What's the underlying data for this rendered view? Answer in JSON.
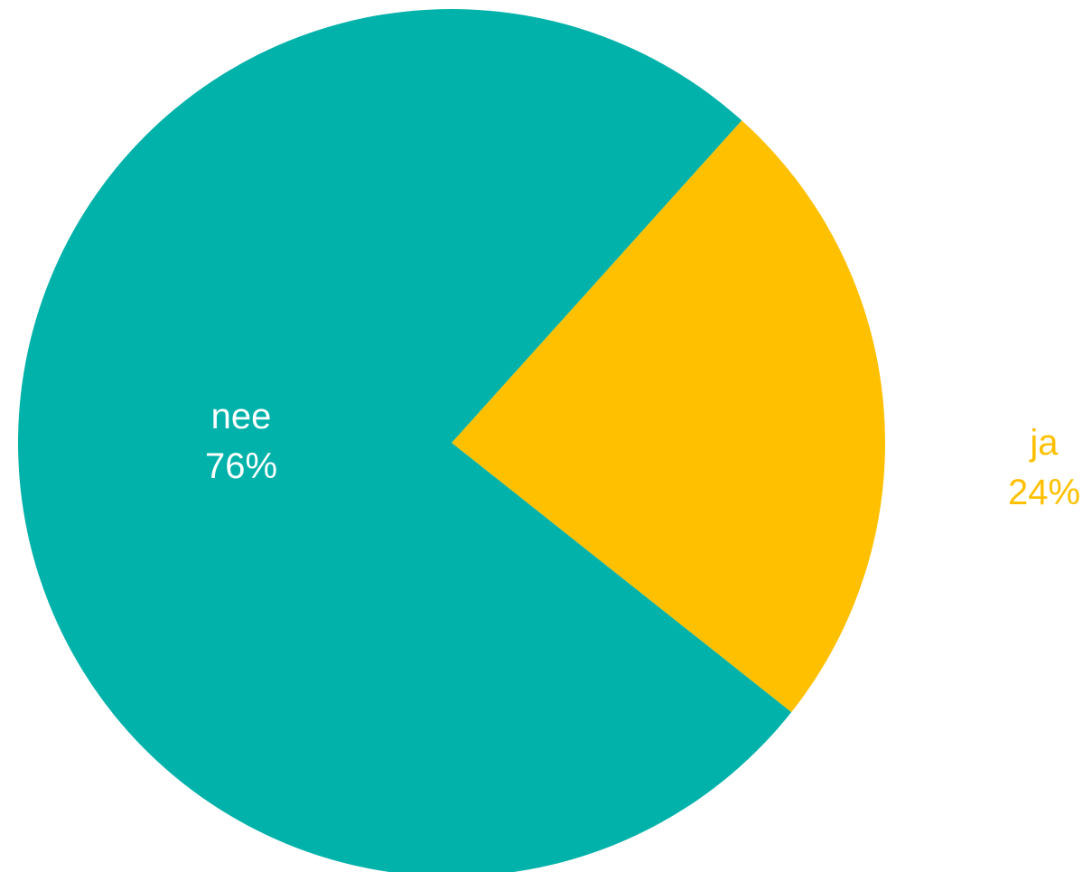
{
  "chart_data": {
    "type": "pie",
    "title": "",
    "slices": [
      {
        "label": "ja",
        "value": 24,
        "value_label": "24%",
        "color": "#FFC000"
      },
      {
        "label": "nee",
        "value": 76,
        "value_label": "76%",
        "color": "#00B2AA"
      }
    ],
    "legend": "none",
    "label_colors": {
      "ja": "#FFC000",
      "nee": "#FFFFFF"
    }
  }
}
